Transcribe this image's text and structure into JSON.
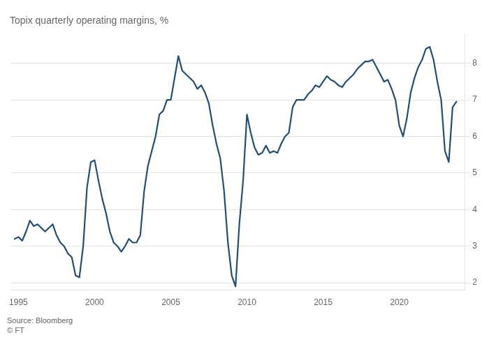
{
  "chart_data": {
    "type": "line",
    "title": "Topix quarterly operating margins, %",
    "annotations": [
      "Source: Bloomberg\n© FT"
    ],
    "color": "#1f4e79",
    "x": [
      1994.75,
      1995.0,
      1995.25,
      1995.5,
      1995.75,
      1996.0,
      1996.25,
      1996.5,
      1996.75,
      1997.0,
      1997.25,
      1997.5,
      1997.75,
      1998.0,
      1998.25,
      1998.5,
      1998.75,
      1999.0,
      1999.25,
      1999.5,
      1999.75,
      2000.0,
      2000.25,
      2000.5,
      2000.75,
      2001.0,
      2001.25,
      2001.5,
      2001.75,
      2002.0,
      2002.25,
      2002.5,
      2002.75,
      2003.0,
      2003.25,
      2003.5,
      2003.75,
      2004.0,
      2004.25,
      2004.5,
      2004.75,
      2005.0,
      2005.25,
      2005.5,
      2005.75,
      2006.0,
      2006.25,
      2006.5,
      2006.75,
      2007.0,
      2007.25,
      2007.5,
      2007.75,
      2008.0,
      2008.25,
      2008.5,
      2008.75,
      2009.0,
      2009.25,
      2009.5,
      2009.75,
      2010.0,
      2010.25,
      2010.5,
      2010.75,
      2011.0,
      2011.25,
      2011.5,
      2011.75,
      2012.0,
      2012.25,
      2012.5,
      2012.75,
      2013.0,
      2013.25,
      2013.5,
      2013.75,
      2014.0,
      2014.25,
      2014.5,
      2014.75,
      2015.0,
      2015.25,
      2015.5,
      2015.75,
      2016.0,
      2016.25,
      2016.5,
      2016.75,
      2017.0,
      2017.25,
      2017.5,
      2017.75,
      2018.0,
      2018.25,
      2018.5,
      2018.75,
      2019.0,
      2019.25,
      2019.5,
      2019.75,
      2020.0,
      2020.25,
      2020.5,
      2020.75,
      2021.0,
      2021.25,
      2021.5,
      2021.75,
      2022.0,
      2022.25,
      2022.5,
      2022.75,
      2023.0,
      2023.25,
      2023.5,
      2023.75
    ],
    "values": [
      3.2,
      3.25,
      3.15,
      3.4,
      3.7,
      3.55,
      3.6,
      3.5,
      3.4,
      3.5,
      3.6,
      3.3,
      3.1,
      3.0,
      2.8,
      2.7,
      2.2,
      2.15,
      3.0,
      4.6,
      5.3,
      5.35,
      4.8,
      4.3,
      3.9,
      3.4,
      3.1,
      3.0,
      2.85,
      3.0,
      3.2,
      3.1,
      3.1,
      3.3,
      4.5,
      5.2,
      5.6,
      6.0,
      6.6,
      6.7,
      7.0,
      7.0,
      7.6,
      8.2,
      7.8,
      7.7,
      7.6,
      7.5,
      7.3,
      7.4,
      7.2,
      6.9,
      6.3,
      5.8,
      5.4,
      4.5,
      3.1,
      2.2,
      1.9,
      3.6,
      4.8,
      6.6,
      6.1,
      5.7,
      5.5,
      5.55,
      5.75,
      5.55,
      5.6,
      5.55,
      5.8,
      6.0,
      6.1,
      6.8,
      7.0,
      7.0,
      7.0,
      7.15,
      7.25,
      7.4,
      7.35,
      7.5,
      7.65,
      7.55,
      7.5,
      7.4,
      7.35,
      7.5,
      7.6,
      7.7,
      7.85,
      7.95,
      8.05,
      8.05,
      8.1,
      7.9,
      7.7,
      7.5,
      7.55,
      7.3,
      7.0,
      6.3,
      6.0,
      6.5,
      7.2,
      7.6,
      7.9,
      8.1,
      8.4,
      8.45,
      8.1,
      7.5,
      7.0,
      5.6,
      5.3,
      6.8,
      6.95
    ],
    "xlim": [
      1994.5,
      2024.3
    ],
    "xticks": [
      1995,
      2000,
      2005,
      2010,
      2015,
      2020
    ],
    "ylim": [
      1.8,
      8.8
    ],
    "yticks": [
      2,
      3,
      4,
      5,
      6,
      7,
      8
    ],
    "grid": true
  }
}
